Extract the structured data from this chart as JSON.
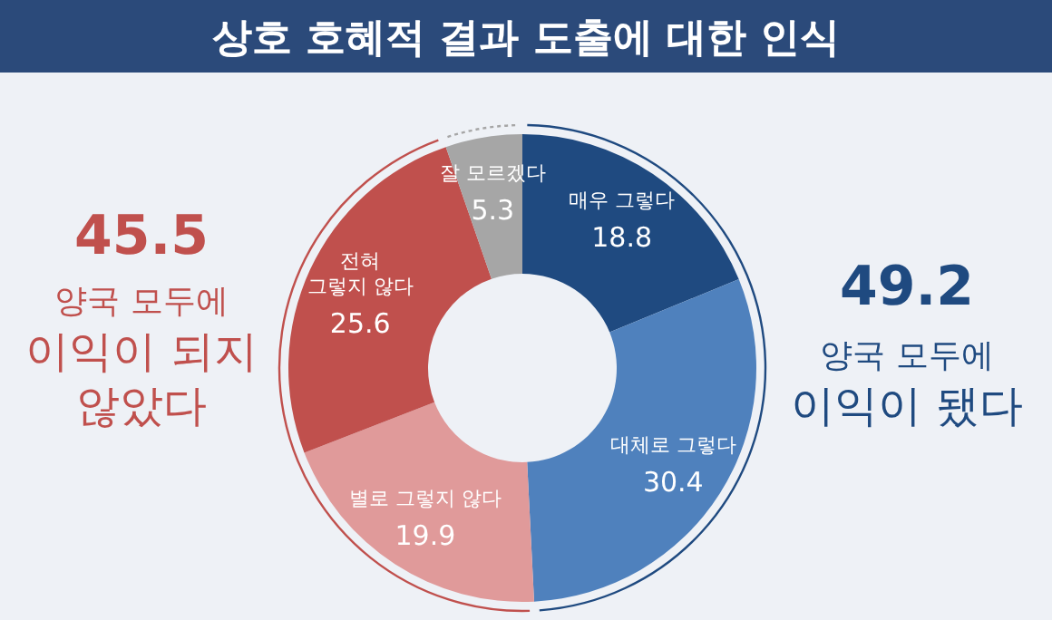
{
  "chart_data": {
    "type": "donut",
    "title": "상호 호혜적 결과 도출에 대한 인식",
    "categories": [
      "매우 그렇다",
      "대체로 그렇다",
      "별로 그렇지 않다",
      "전혀\n그렇지 않다",
      "잘 모르겠다"
    ],
    "values": [
      18.8,
      30.4,
      19.9,
      25.6,
      5.3
    ],
    "colors": [
      "#1f4a80",
      "#4f81bd",
      "#e09a9a",
      "#c0504d",
      "#a6a6a6"
    ],
    "data_labels": true,
    "annotations": [
      "45.5",
      "양국 모두에\n이익이 되지\n않았다",
      "49.2",
      "양국 모두에\n이익이 됐다"
    ]
  }
}
